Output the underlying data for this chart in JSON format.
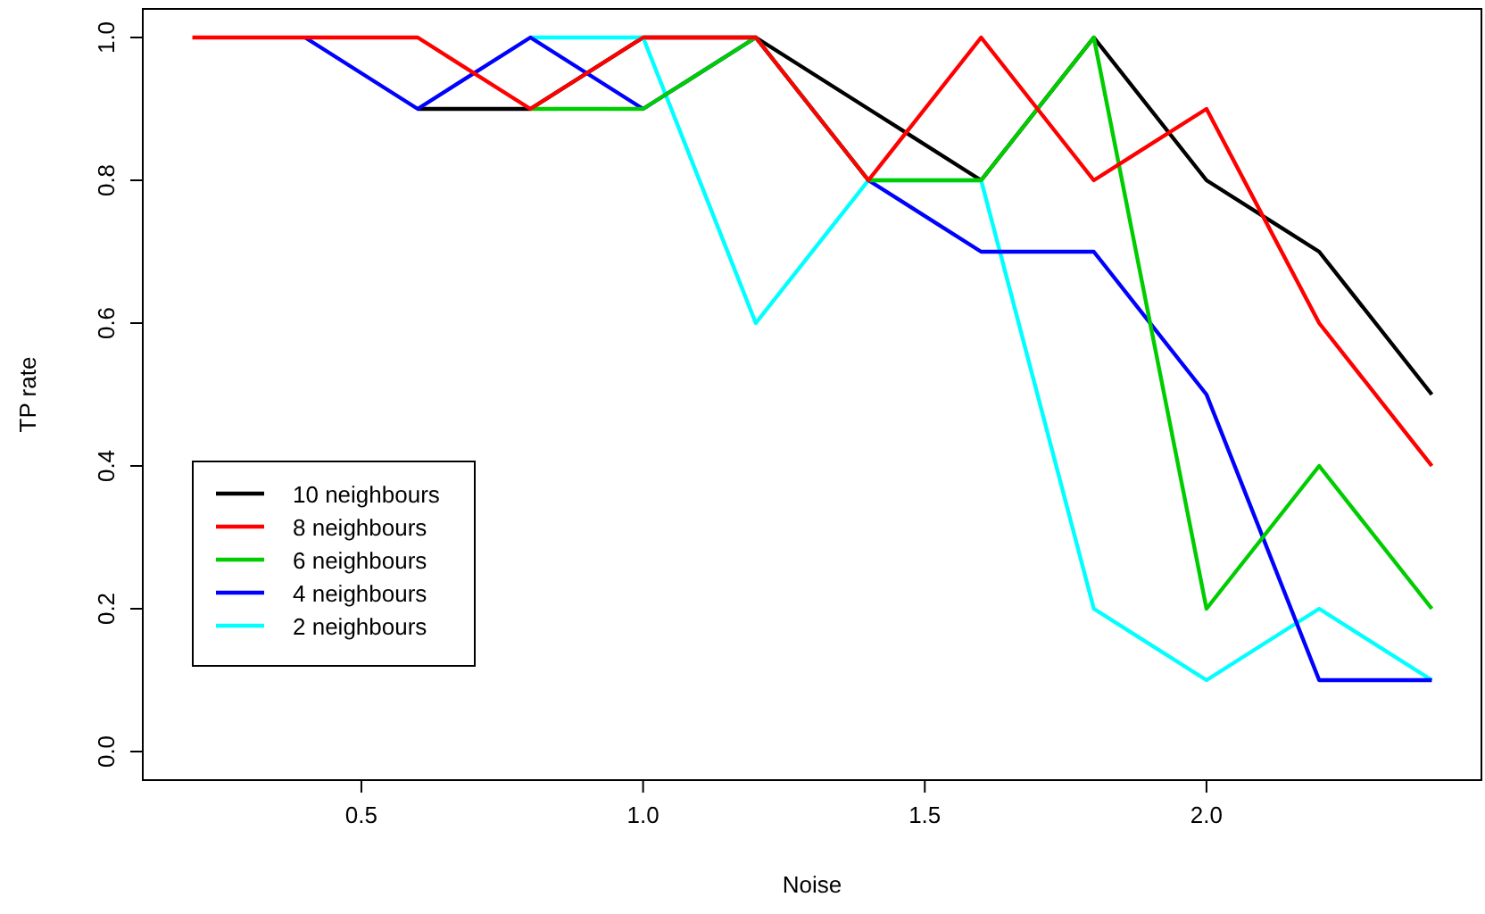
{
  "chart_data": {
    "type": "line",
    "xlabel": "Noise",
    "ylabel": "TP rate",
    "x": [
      0.2,
      0.4,
      0.6,
      0.8,
      1.0,
      1.2,
      1.4,
      1.6,
      1.8,
      2.0,
      2.2,
      2.4
    ],
    "xlim": [
      0.112,
      2.488
    ],
    "xticks": [
      {
        "value": 0.5,
        "label": "0.5"
      },
      {
        "value": 1,
        "label": "1.0"
      },
      {
        "value": 1.5,
        "label": "1.5"
      },
      {
        "value": 2,
        "label": "2.0"
      }
    ],
    "ylim": [
      -0.04,
      1.04
    ],
    "yticks": [
      {
        "value": 0,
        "label": "0.0"
      },
      {
        "value": 0.2,
        "label": "0.2"
      },
      {
        "value": 0.4,
        "label": "0.4"
      },
      {
        "value": 0.6,
        "label": "0.6"
      },
      {
        "value": 0.8,
        "label": "0.8"
      },
      {
        "value": 1,
        "label": "1.0"
      }
    ],
    "legend": "bottom left",
    "grid": false,
    "series": [
      {
        "name": "10 neighbours",
        "color": "#000000",
        "values": [
          null,
          null,
          0.9,
          0.9,
          1.0,
          1.0,
          0.9,
          0.8,
          1.0,
          0.8,
          0.7,
          0.5
        ]
      },
      {
        "name": "8 neighbours",
        "color": "#ff0000",
        "values": [
          1.0,
          1.0,
          1.0,
          0.9,
          1.0,
          1.0,
          0.8,
          1.0,
          0.8,
          0.9,
          0.6,
          0.4
        ]
      },
      {
        "name": "6 neighbours",
        "color": "#00cd00",
        "values": [
          null,
          null,
          null,
          0.9,
          0.9,
          1.0,
          0.8,
          0.8,
          1.0,
          0.2,
          0.4,
          0.2
        ]
      },
      {
        "name": "4 neighbours",
        "color": "#0000ff",
        "values": [
          null,
          1.0,
          0.9,
          1.0,
          0.9,
          1.0,
          0.8,
          0.7,
          0.7,
          0.5,
          0.1,
          0.1
        ]
      },
      {
        "name": "2 neighbours",
        "color": "#00ffff",
        "values": [
          null,
          null,
          null,
          1.0,
          1.0,
          0.6,
          0.8,
          0.8,
          0.2,
          0.1,
          0.2,
          0.1
        ]
      }
    ]
  }
}
